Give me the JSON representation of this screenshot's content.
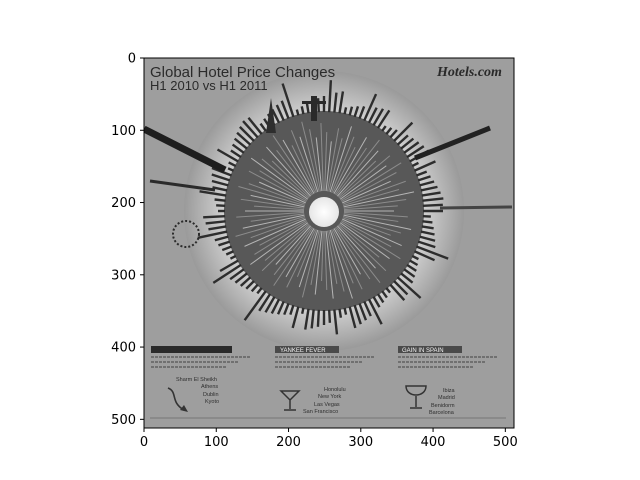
{
  "chart_data": {
    "type": "image",
    "xlim": [
      0,
      512
    ],
    "ylim": [
      512,
      0
    ],
    "x_ticks": [
      0,
      100,
      200,
      300,
      400,
      500
    ],
    "y_ticks": [
      0,
      100,
      200,
      300,
      400,
      500
    ],
    "x_tick_labels": [
      "0",
      "100",
      "200",
      "300",
      "400",
      "500"
    ],
    "y_tick_labels": [
      "0",
      "100",
      "200",
      "300",
      "400",
      "500"
    ],
    "colormap": "gray",
    "image": {
      "title_line1": "Global Hotel Price Changes",
      "title_line2": "H1 2010 vs H1 2011",
      "logo": "Hotels.com",
      "section_yankee": "YANKEE FEVER",
      "section_spain": "GAIN IN SPAIN",
      "cities_left": [
        "Sharm El Sheikh",
        "Athens",
        "Dublin",
        "Kyoto"
      ],
      "cities_middle": [
        "Honolulu",
        "New York",
        "Las Vegas",
        "San Francisco"
      ],
      "cities_right": [
        "Ibiza",
        "Madrid",
        "Benidorm",
        "Barcelona"
      ]
    }
  }
}
